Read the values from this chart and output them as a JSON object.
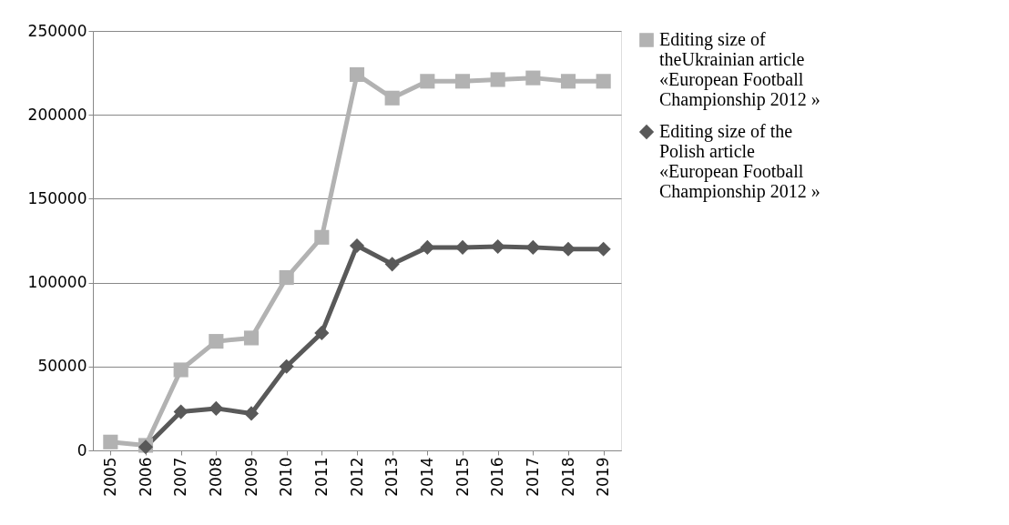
{
  "chart_data": {
    "type": "line",
    "categories": [
      "2005",
      "2006",
      "2007",
      "2008",
      "2009",
      "2010",
      "2011",
      "2012",
      "2013",
      "2014",
      "2015",
      "2016",
      "2017",
      "2018",
      "2019"
    ],
    "series": [
      {
        "name": "Editing size of theUkrainian article «European Football Championship 2012 »",
        "color": "#b2b2b2",
        "marker": "square",
        "values": [
          5000,
          3000,
          48000,
          65000,
          67000,
          103000,
          127000,
          224000,
          210000,
          220000,
          220000,
          221000,
          222000,
          220000,
          220000
        ]
      },
      {
        "name": "Editing size of the Polish article «European Football Championship 2012 »",
        "color": "#595959",
        "marker": "diamond",
        "values": [
          null,
          2000,
          23000,
          25000,
          22000,
          50000,
          70000,
          122000,
          111000,
          121000,
          121000,
          121500,
          121000,
          120000,
          120000
        ]
      }
    ],
    "ylim": [
      0,
      250000
    ],
    "yticks": [
      0,
      50000,
      100000,
      150000,
      200000,
      250000
    ],
    "grid": "y",
    "legend": "right",
    "line_style": "solid"
  }
}
